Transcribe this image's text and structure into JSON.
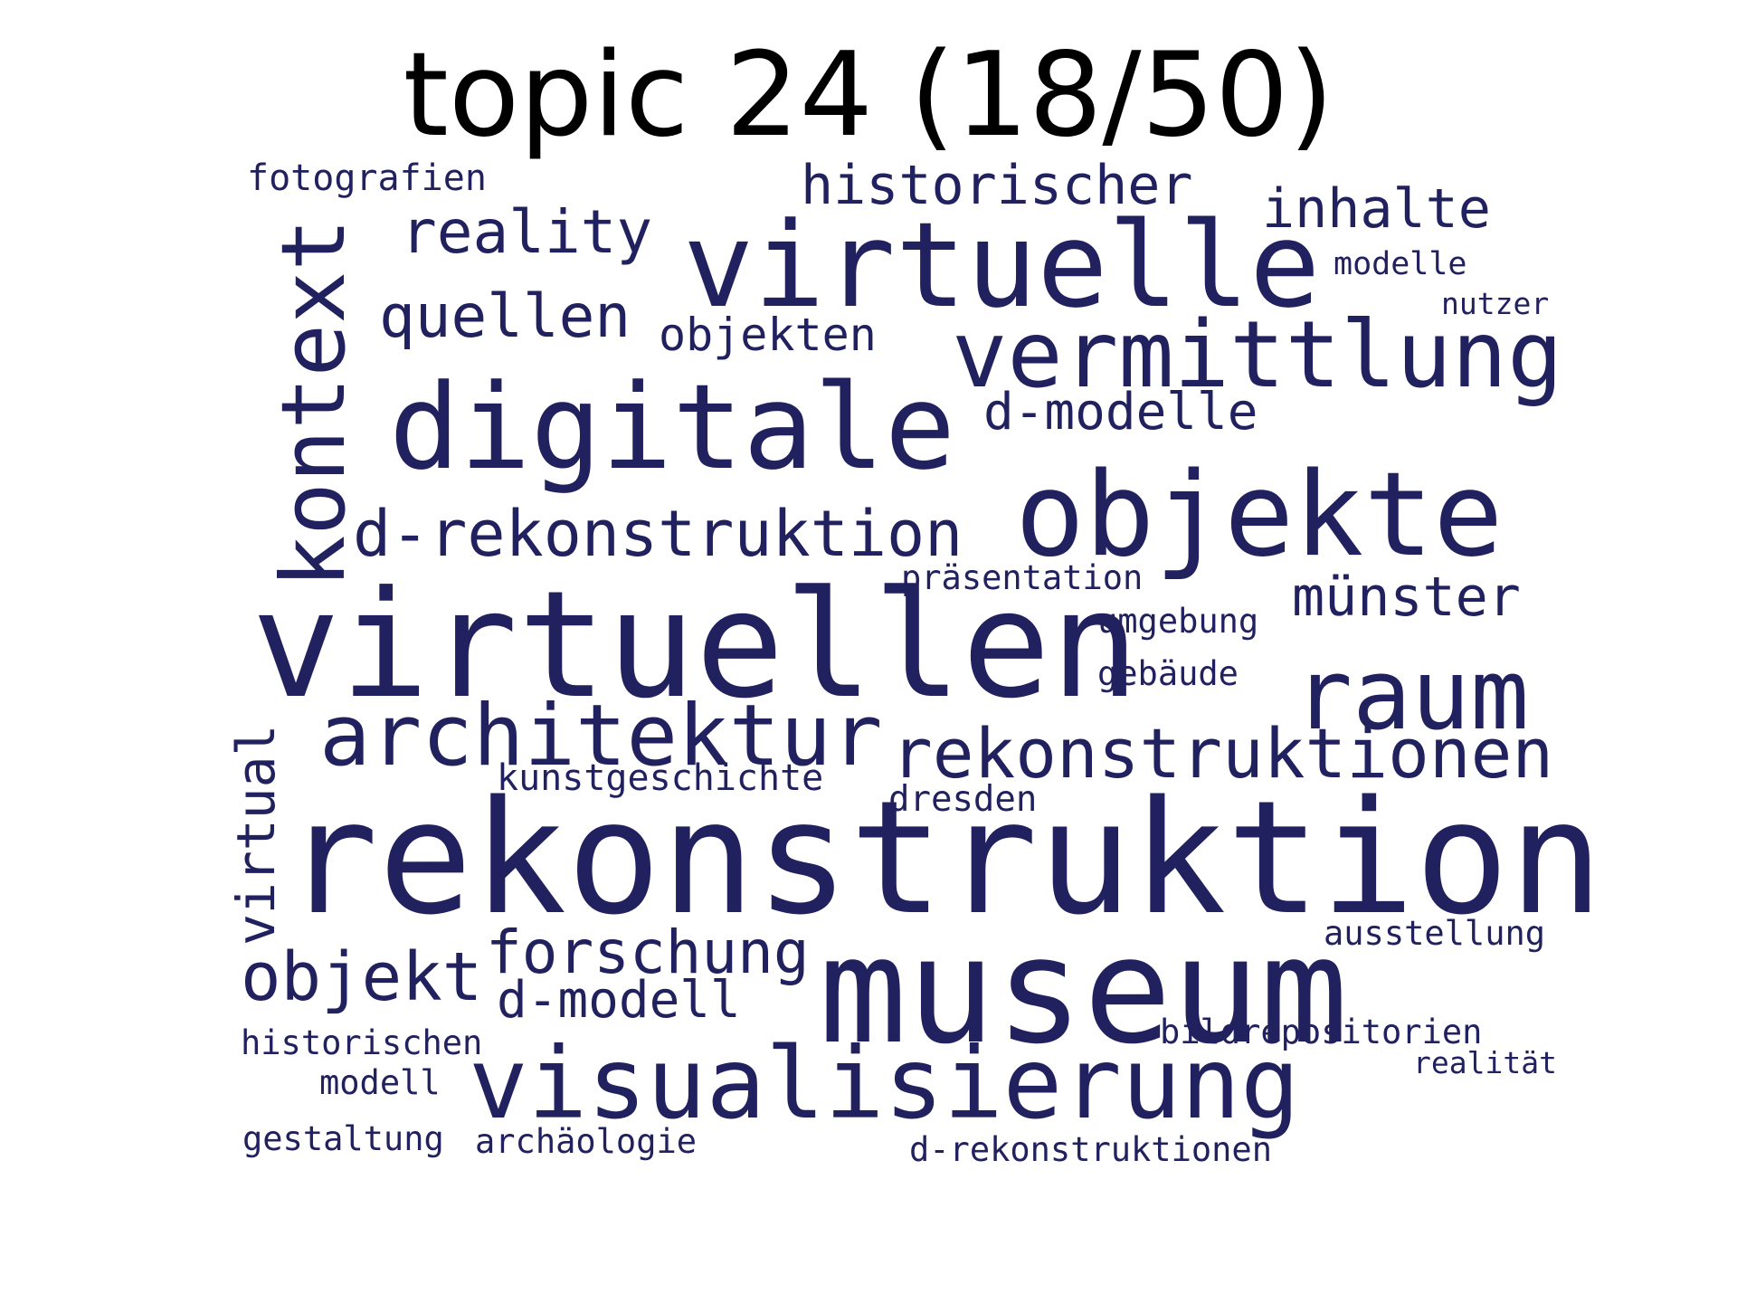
{
  "title": "topic 24 (18/50)",
  "word_color": "#22215f",
  "words": {
    "rekonstruktion": "rekonstruktion",
    "virtuellen": "virtuellen",
    "museum": "museum",
    "virtuelle": "virtuelle",
    "digitale": "digitale",
    "objekte": "objekte",
    "visualisierung": "visualisierung",
    "vermittlung": "vermittlung",
    "kontext": "kontext",
    "architektur": "architektur",
    "raum": "raum",
    "rekonstruktionen": "rekonstruktionen",
    "d_rekonstruktion": "d-rekonstruktion",
    "objekt": "objekt",
    "forschung": "forschung",
    "quellen": "quellen",
    "reality": "reality",
    "historischer": "historischer",
    "inhalte": "inhalte",
    "virtual": "virtual",
    "muenster": "münster",
    "d_modelle": "d-modelle",
    "d_modell": "d-modell",
    "objekten": "objekten",
    "kunstgeschichte": "kunstgeschichte",
    "fotografien": "fotografien",
    "praesentation": "präsentation",
    "umgebung": "umgebung",
    "gebaeude": "gebäude",
    "dresden": "dresden",
    "ausstellung": "ausstellung",
    "bildrepositorien": "bildrepositorien",
    "historischen": "historischen",
    "realitaet": "realität",
    "modell": "modell",
    "gestaltung": "gestaltung",
    "archaeologie": "archäologie",
    "d_rekonstruktionen": "d-rekonstruktionen",
    "modelle": "modelle",
    "nutzer": "nutzer"
  }
}
